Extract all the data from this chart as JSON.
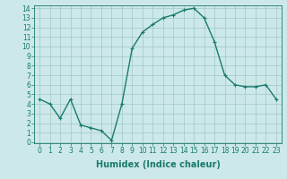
{
  "x": [
    0,
    1,
    2,
    3,
    4,
    5,
    6,
    7,
    8,
    9,
    10,
    11,
    12,
    13,
    14,
    15,
    16,
    17,
    18,
    19,
    20,
    21,
    22,
    23
  ],
  "y": [
    4.5,
    4.0,
    2.5,
    4.5,
    1.8,
    1.5,
    1.2,
    0.2,
    4.0,
    9.8,
    11.5,
    12.3,
    13.0,
    13.3,
    13.8,
    14.0,
    13.0,
    10.5,
    7.0,
    6.0,
    5.8,
    5.8,
    6.0,
    4.5
  ],
  "line_color": "#1a7a6e",
  "marker": "+",
  "marker_size": 3,
  "bg_color": "#cce8e8",
  "grid_color": "#a0c8c8",
  "xlabel": "Humidex (Indice chaleur)",
  "xlabel_fontsize": 7,
  "xlabel_bold": true,
  "ylim": [
    0,
    14
  ],
  "xlim": [
    -0.5,
    23.5
  ],
  "yticks": [
    0,
    1,
    2,
    3,
    4,
    5,
    6,
    7,
    8,
    9,
    10,
    11,
    12,
    13,
    14
  ],
  "xticks": [
    0,
    1,
    2,
    3,
    4,
    5,
    6,
    7,
    8,
    9,
    10,
    11,
    12,
    13,
    14,
    15,
    16,
    17,
    18,
    19,
    20,
    21,
    22,
    23
  ],
  "tick_fontsize": 5.5,
  "line_width": 1.0,
  "marker_edge_width": 0.8
}
